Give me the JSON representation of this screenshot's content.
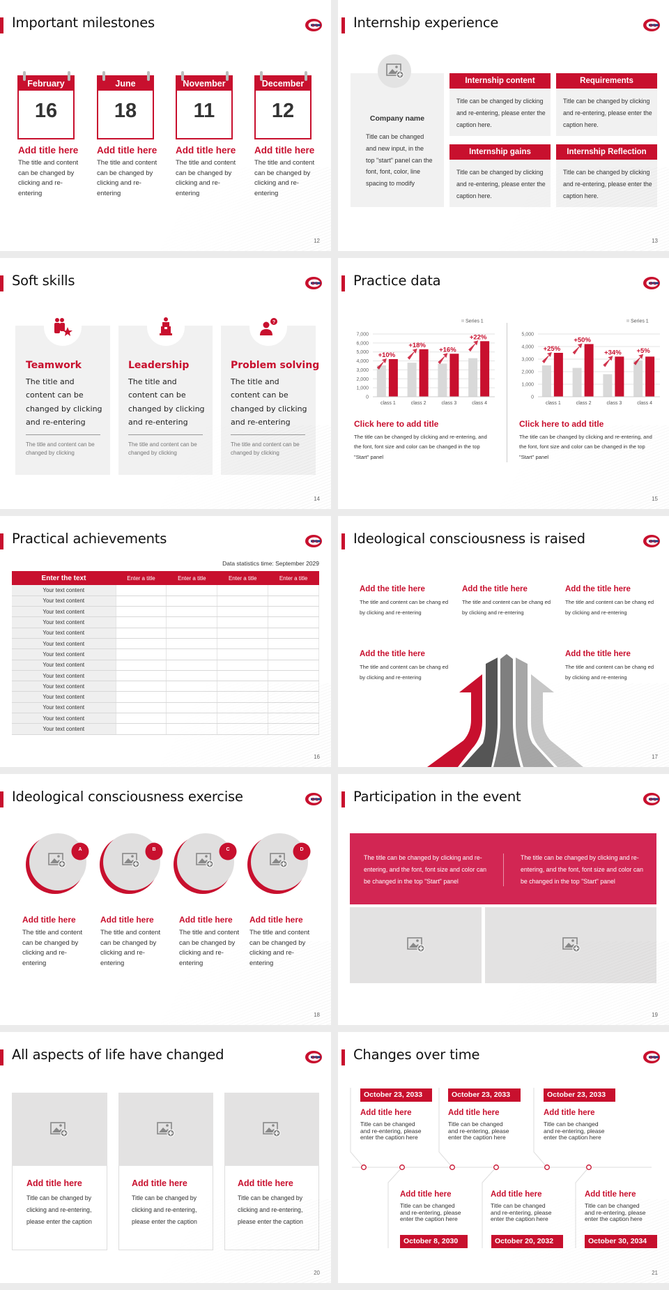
{
  "colors": {
    "accent": "#c8102e",
    "panel": "#f1f1f1",
    "placeholder": "#e3e2e2"
  },
  "slide12": {
    "title": "Important milestones",
    "page": "12",
    "items": [
      {
        "month": "February",
        "day": "16",
        "heading": "Add title here",
        "text": "The title and content can be changed by clicking and re-entering"
      },
      {
        "month": "June",
        "day": "18",
        "heading": "Add title here",
        "text": "The title and content can be changed by clicking and re-entering"
      },
      {
        "month": "November",
        "day": "11",
        "heading": "Add title here",
        "text": "The title and content can be changed by clicking and re-entering"
      },
      {
        "month": "December",
        "day": "12",
        "heading": "Add title here",
        "text": "The title and content can be changed by clicking and re-entering"
      }
    ]
  },
  "slide13": {
    "title": "Internship experience",
    "page": "13",
    "company": {
      "name": "Company name",
      "text": "Title can be changed and new input, in the top \"start\" panel can the font, font, color, line spacing to modify",
      "icon": "image-add-icon"
    },
    "boxes": [
      {
        "heading": "Internship content",
        "text": "Title can be changed by clicking and re-entering, please enter the caption here."
      },
      {
        "heading": "Requirements",
        "text": "Title can be changed by clicking and re-entering, please enter the caption here."
      },
      {
        "heading": "Internship gains",
        "text": "Title can be changed by clicking and re-entering, please enter the caption here."
      },
      {
        "heading": "Internship Reflection",
        "text": "Title can be changed by clicking and re-entering, please enter the caption here."
      }
    ]
  },
  "slide14": {
    "title": "Soft skills",
    "page": "14",
    "cards": [
      {
        "icon": "team-icon",
        "heading": "Teamwork",
        "text": "The title and content can be changed by clicking and re-entering",
        "note": "The title and content can be changed by clicking"
      },
      {
        "icon": "leader-podium-icon",
        "heading": "Leadership",
        "text": "The title and content can be changed by clicking and re-entering",
        "note": "The title and content can be changed by clicking"
      },
      {
        "icon": "question-person-icon",
        "heading": "Problem solving",
        "text": "The title and content can be changed by clicking and re-entering",
        "note": "The title and content can be changed by clicking"
      }
    ]
  },
  "slide15": {
    "title": "Practice data",
    "page": "15",
    "captions": [
      {
        "heading": "Click here to add title",
        "text": "The title can be changed by clicking and re-entering, and the font, font size and color can be changed in the top \"Start\" panel"
      },
      {
        "heading": "Click here to add title",
        "text": "The title can be changed by clicking and re-entering, and the font, font size and color can be changed in the top \"Start\" panel"
      }
    ]
  },
  "chart_data": [
    {
      "type": "bar",
      "categories": [
        "class 1",
        "class 2",
        "class 3",
        "class 4"
      ],
      "ylim": [
        0,
        7000
      ],
      "yticks": [
        "0",
        "1,000",
        "2,000",
        "3,000",
        "4,000",
        "5,000",
        "6,000",
        "7,000"
      ],
      "grid": true,
      "legend": "top-right",
      "series": [
        {
          "name": "Series 1",
          "color": "#d9d9d9",
          "values": [
            3500,
            3800,
            3700,
            4300
          ]
        },
        {
          "color": "#c8102e",
          "values": [
            4200,
            5300,
            4800,
            6200
          ]
        }
      ],
      "annotations": [
        "+10%",
        "+18%",
        "+16%",
        "+22%"
      ]
    },
    {
      "type": "bar",
      "categories": [
        "class 1",
        "class 2",
        "class 3",
        "class 4"
      ],
      "ylim": [
        0,
        5000
      ],
      "yticks": [
        "0",
        "1,000",
        "2,000",
        "3,000",
        "4,000",
        "5,000"
      ],
      "grid": true,
      "legend": "top-right",
      "series": [
        {
          "name": "Series 1",
          "color": "#d9d9d9",
          "values": [
            2500,
            2300,
            1800,
            2900
          ]
        },
        {
          "color": "#c8102e",
          "values": [
            3500,
            4200,
            3200,
            3200
          ]
        }
      ],
      "annotations": [
        "+25%",
        "+50%",
        "+34%",
        "+5%"
      ]
    }
  ],
  "slide16": {
    "title": "Practical achievements",
    "page": "16",
    "stats": "Data statistics time: September 2029",
    "headers": [
      "Enter the text",
      "Enter a title",
      "Enter a title",
      "Enter a title",
      "Enter a title"
    ],
    "rows": [
      "Your text content",
      "Your text content",
      "Your text content",
      "Your text content",
      "Your text content",
      "Your text content",
      "Your text content",
      "Your text content",
      "Your text content",
      "Your text content",
      "Your text content",
      "Your text content",
      "Your text content",
      "Your text content"
    ]
  },
  "slide17": {
    "title": "Ideological consciousness is raised",
    "page": "17",
    "items": [
      {
        "heading": "Add the title here",
        "text": "The title and content can be chang ed by clicking and re-entering"
      },
      {
        "heading": "Add the title here",
        "text": "The title and content can be chang ed by clicking and re-entering"
      },
      {
        "heading": "Add the title here",
        "text": "The title and content can be chang ed by clicking and re-entering"
      },
      {
        "heading": "Add the title here",
        "text": "The title and content can be chang ed by clicking and re-entering"
      },
      {
        "heading": "Add the title here",
        "text": "The title and content can be chang ed by clicking and re-entering"
      }
    ]
  },
  "slide18": {
    "title": "Ideological consciousness exercise",
    "page": "18",
    "items": [
      {
        "badge": "A",
        "heading": "Add title here",
        "text": "The title and content can be changed by clicking and re-entering"
      },
      {
        "badge": "B",
        "heading": "Add title here",
        "text": "The title and content can be changed by clicking and re-entering"
      },
      {
        "badge": "C",
        "heading": "Add title here",
        "text": "The title and content can be changed by clicking and re-entering"
      },
      {
        "badge": "D",
        "heading": "Add title here",
        "text": "The title and content can be changed by clicking and re-entering"
      }
    ]
  },
  "slide19": {
    "title": "Participation in the event",
    "page": "19",
    "texts": [
      "The title can be changed by clicking and re-entering, and the font, font size and color can be changed in the top \"Start\" panel",
      "The title can be changed by clicking and re-entering, and the font, font size and color can be changed in the top \"Start\" panel"
    ]
  },
  "slide20": {
    "title": "All aspects of life have changed",
    "page": "20",
    "cards": [
      {
        "heading": "Add title here",
        "text": "Title can be changed by clicking and re-entering, please enter the caption"
      },
      {
        "heading": "Add title here",
        "text": "Title can be changed by clicking and re-entering, please enter the caption"
      },
      {
        "heading": "Add title here",
        "text": "Title can be changed by clicking and re-entering, please enter the caption"
      }
    ]
  },
  "slide21": {
    "title": "Changes over time",
    "page": "21",
    "top": [
      {
        "date": "October 23, 2033",
        "heading": "Add title here",
        "text": "Title can be changed and re-entering, please enter the caption here"
      },
      {
        "date": "October 23, 2033",
        "heading": "Add title here",
        "text": "Title can be changed and re-entering, please enter the caption here"
      },
      {
        "date": "October 23, 2033",
        "heading": "Add title here",
        "text": "Title can be changed and re-entering, please enter the caption here"
      }
    ],
    "bottom": [
      {
        "date": "October 8, 2030",
        "heading": "Add title here",
        "text": "Title can be changed and re-entering, please enter the caption here"
      },
      {
        "date": "October 20, 2032",
        "heading": "Add title here",
        "text": "Title can be changed and re-entering, please enter the caption here"
      },
      {
        "date": "October 30, 2034",
        "heading": "Add title here",
        "text": "Title can be changed and re-entering, please enter the caption here"
      }
    ]
  }
}
